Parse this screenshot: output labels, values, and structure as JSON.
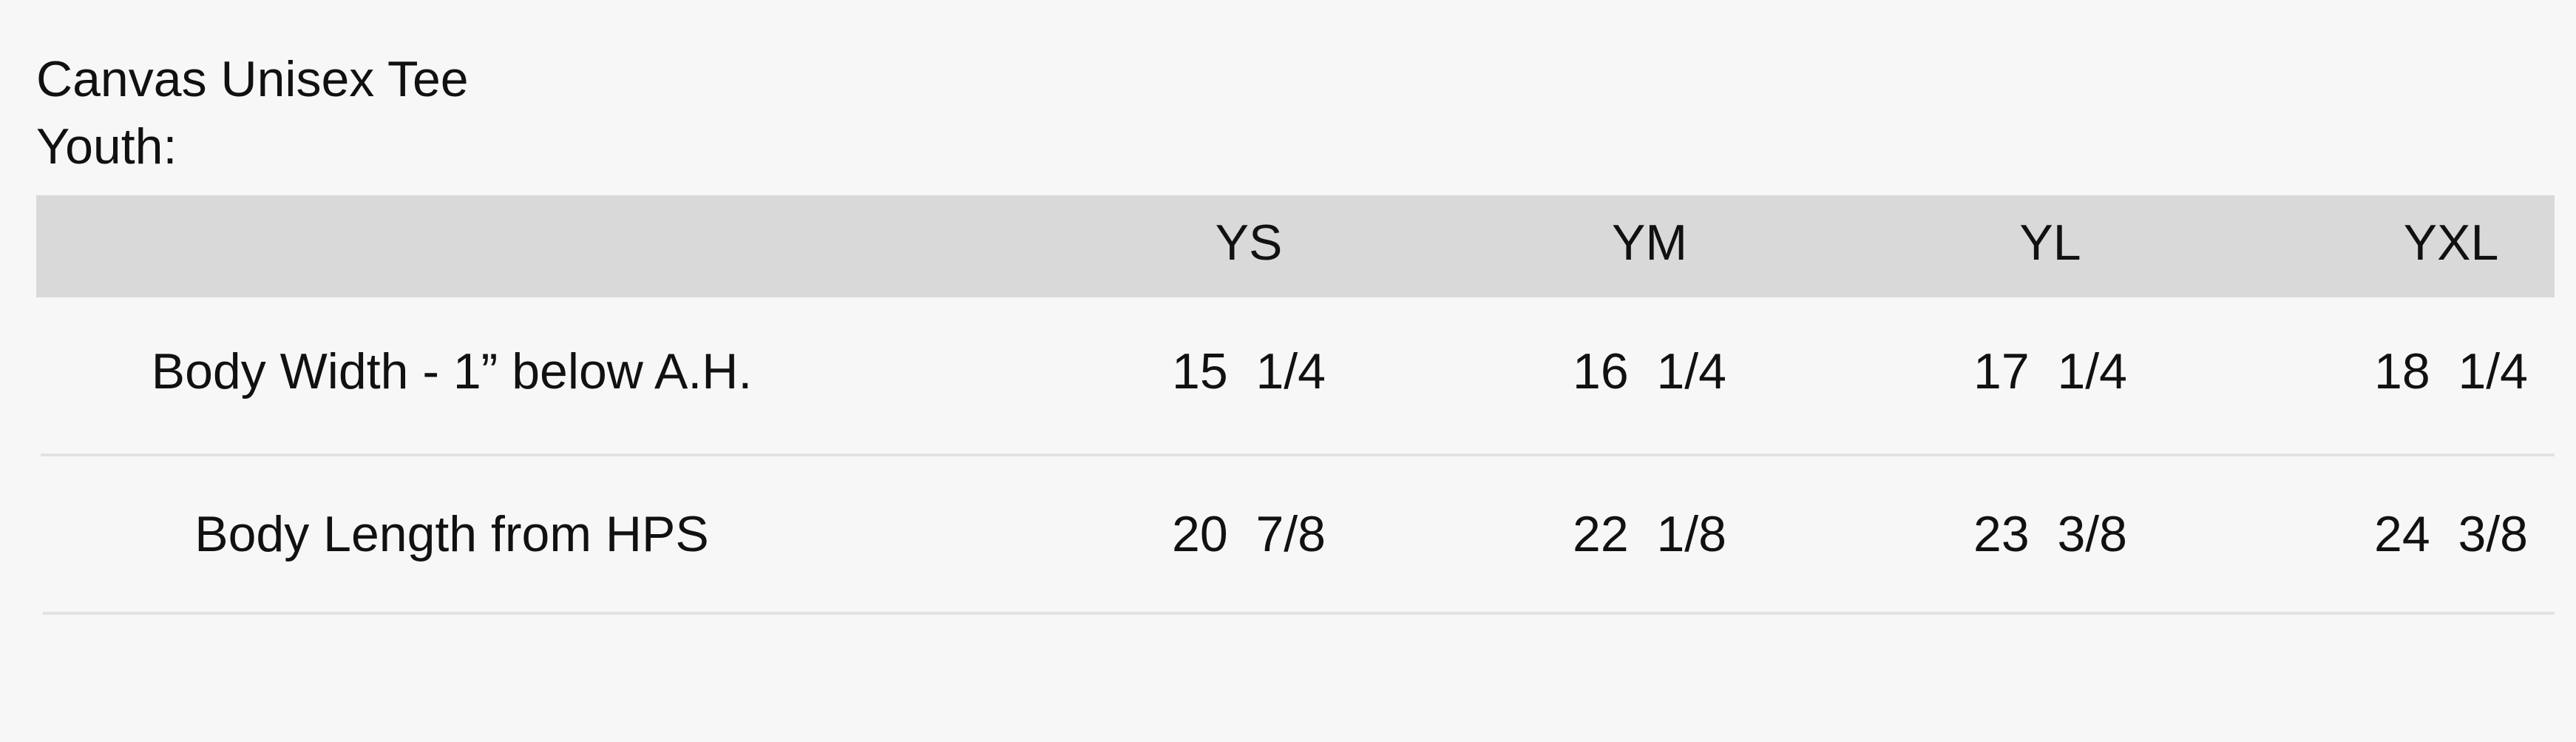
{
  "header": {
    "title": "Canvas Unisex Tee",
    "subtitle": "Youth:"
  },
  "table": {
    "columns": [
      "YS",
      "YM",
      "YL",
      "YXL"
    ],
    "rows": [
      {
        "label": "Body Width - 1” below A.H.",
        "values": [
          "15  1/4",
          "16  1/4",
          "17  1/4",
          "18  1/4"
        ]
      },
      {
        "label": "Body Length from HPS",
        "values": [
          "20  7/8",
          "22  1/8",
          "23  3/8",
          "24  3/8"
        ]
      }
    ]
  }
}
